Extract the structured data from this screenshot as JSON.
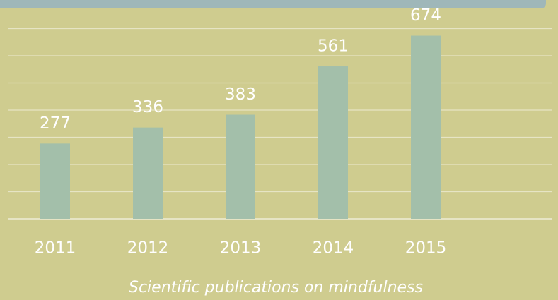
{
  "chart_data": {
    "type": "bar",
    "title": "Scientific publications on mindfulness",
    "categories": [
      "2011",
      "2012",
      "2013",
      "2014",
      "2015"
    ],
    "values": [
      277,
      336,
      383,
      561,
      674
    ],
    "color": "#a3bfaa",
    "ylim": [
      0,
      700
    ],
    "yticks": [
      0,
      100,
      200,
      300,
      400,
      500,
      600,
      700
    ],
    "grid": true
  }
}
